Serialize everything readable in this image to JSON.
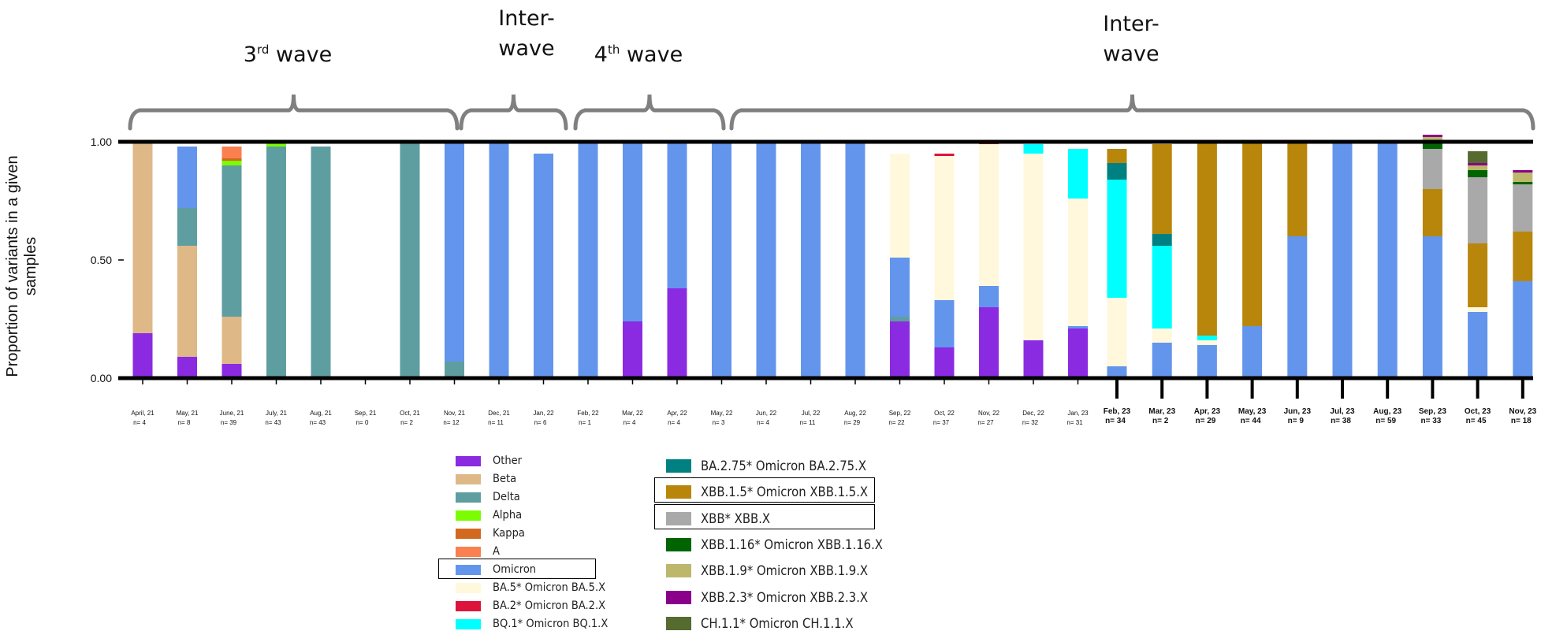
{
  "ylabel": "Proportion of variants in a given samples",
  "waves": [
    {
      "line1": "3",
      "sup": "rd",
      "line2": " wave"
    },
    {
      "line1": "Inter-",
      "line2": "wave"
    },
    {
      "line1": "4",
      "sup": "th",
      "line2": " wave"
    },
    {
      "line1": "Inter-",
      "line2": "wave"
    }
  ],
  "chart_data": {
    "type": "bar",
    "stacked": true,
    "ylabel": "Proportion of variants in a given samples",
    "ylim": [
      0,
      1
    ],
    "yticks": [
      "0.00",
      "0.50",
      "1.00"
    ],
    "categories": [
      "April, 21",
      "May, 21",
      "June, 21",
      "July, 21",
      "Aug, 21",
      "Sep, 21",
      "Oct, 21",
      "Nov, 21",
      "Dec, 21",
      "Jan, 22",
      "Feb, 22",
      "Mar, 22",
      "Apr, 22",
      "May, 22",
      "Jun, 22",
      "Jul, 22",
      "Aug, 22",
      "Sep, 22",
      "Oct, 22",
      "Nov, 22",
      "Dec, 22",
      "Jan, 23",
      "Feb, 23",
      "Mar, 23",
      "Apr, 23",
      "May, 23",
      "Jun, 23",
      "Jul, 23",
      "Aug, 23",
      "Sep, 23",
      "Oct, 23",
      "Nov, 23"
    ],
    "n_labels": [
      "n= 4",
      "n= 8",
      "n= 39",
      "n= 43",
      "n= 43",
      "n= 0",
      "n= 2",
      "n= 12",
      "n= 11",
      "n= 6",
      "n= 1",
      "n= 4",
      "n= 4",
      "n= 3",
      "n= 4",
      "n= 11",
      "n= 29",
      "n= 22",
      "n= 37",
      "n= 27",
      "n= 32",
      "n= 31",
      "n= 34",
      "n= 2",
      "n= 29",
      "n= 44",
      "n= 9",
      "n= 38",
      "n= 59",
      "n= 33",
      "n= 45",
      "n= 18"
    ],
    "series": [
      {
        "name": "Other",
        "color": "#8a2be2",
        "values": [
          0.19,
          0.09,
          0.06,
          0,
          0,
          0,
          0,
          0,
          0,
          0,
          0,
          0.24,
          0.38,
          0,
          0,
          0,
          0,
          0.24,
          0.13,
          0.3,
          0.16,
          0.21,
          0,
          0,
          0,
          0,
          0,
          0,
          0,
          0,
          0,
          0
        ]
      },
      {
        "name": "Beta",
        "color": "#deb887",
        "values": [
          0.81,
          0.47,
          0.2,
          0,
          0,
          0,
          0,
          0,
          0,
          0,
          0,
          0,
          0,
          0,
          0,
          0,
          0,
          0,
          0,
          0,
          0,
          0,
          0,
          0,
          0,
          0,
          0,
          0,
          0,
          0,
          0,
          0
        ]
      },
      {
        "name": "Delta",
        "color": "#5f9ea0",
        "values": [
          0,
          0.16,
          0.64,
          0.98,
          0.98,
          0,
          1,
          0.07,
          0,
          0,
          0,
          0,
          0,
          0,
          0,
          0,
          0,
          0.02,
          0,
          0,
          0,
          0,
          0,
          0,
          0,
          0,
          0,
          0,
          0,
          0,
          0,
          0
        ]
      },
      {
        "name": "Alpha",
        "color": "#7cfc00",
        "values": [
          0,
          0,
          0.02,
          0.02,
          0,
          0,
          0,
          0,
          0,
          0,
          0,
          0,
          0,
          0,
          0,
          0,
          0,
          0,
          0,
          0,
          0,
          0,
          0,
          0,
          0,
          0,
          0,
          0,
          0,
          0,
          0,
          0
        ]
      },
      {
        "name": "Kappa",
        "color": "#d2691e",
        "values": [
          0,
          0,
          0.01,
          0,
          0,
          0,
          0,
          0,
          0,
          0,
          0,
          0,
          0,
          0,
          0,
          0,
          0,
          0,
          0,
          0,
          0,
          0,
          0,
          0,
          0,
          0,
          0,
          0,
          0,
          0,
          0,
          0
        ]
      },
      {
        "name": "A",
        "color": "#fa8050",
        "values": [
          0,
          0,
          0.05,
          0,
          0,
          0,
          0,
          0,
          0,
          0,
          0,
          0,
          0,
          0,
          0,
          0,
          0,
          0,
          0,
          0,
          0,
          0,
          0,
          0,
          0,
          0,
          0,
          0,
          0,
          0,
          0,
          0
        ]
      },
      {
        "name": "Omicron",
        "color": "#6495ed",
        "values": [
          0,
          0.26,
          0,
          0,
          0,
          0,
          0,
          0.93,
          1,
          0.95,
          1,
          0.76,
          0.62,
          1,
          1,
          1,
          1,
          0.25,
          0.2,
          0.09,
          0,
          0.01,
          0.05,
          0.15,
          0.14,
          0.22,
          0.6,
          1,
          1,
          0.6,
          0.28,
          0.41
        ]
      },
      {
        "name": "BA.5* Omicron BA.5.X",
        "color": "#fff8dc",
        "values": [
          0,
          0,
          0,
          0,
          0,
          0,
          0,
          0,
          0,
          0,
          0,
          0,
          0,
          0,
          0,
          0,
          0,
          0.44,
          0.61,
          0.6,
          0.79,
          0.54,
          0.29,
          0.06,
          0.02,
          0,
          0,
          0,
          0,
          0,
          0.02,
          0
        ]
      },
      {
        "name": "BA.2* Omicron BA.2.X",
        "color": "#dc143c",
        "values": [
          0,
          0,
          0,
          0,
          0,
          0,
          0,
          0,
          0,
          0,
          0,
          0,
          0,
          0,
          0,
          0,
          0,
          0,
          0.01,
          0.01,
          0,
          0,
          0,
          0,
          0,
          0,
          0,
          0,
          0,
          0,
          0,
          0
        ]
      },
      {
        "name": "BQ.1* Omicron BQ.1.X",
        "color": "#00ffff",
        "values": [
          0,
          0,
          0,
          0,
          0,
          0,
          0,
          0,
          0,
          0,
          0,
          0,
          0,
          0,
          0,
          0,
          0,
          0,
          0,
          0,
          0.04,
          0.21,
          0.5,
          0.35,
          0.02,
          0,
          0,
          0,
          0,
          0,
          0,
          0
        ]
      },
      {
        "name": "BA.2.75* Omicron BA.2.75.X",
        "color": "#008080",
        "values": [
          0,
          0,
          0,
          0,
          0,
          0,
          0,
          0,
          0,
          0,
          0,
          0,
          0,
          0,
          0,
          0,
          0,
          0,
          0,
          0,
          0,
          0,
          0.07,
          0.05,
          0,
          0,
          0,
          0,
          0,
          0,
          0,
          0
        ]
      },
      {
        "name": "XBB.1.5* Omicron XBB.1.5.X",
        "color": "#b8860b",
        "values": [
          0,
          0,
          0,
          0,
          0,
          0,
          0,
          0,
          0,
          0,
          0,
          0,
          0,
          0,
          0,
          0,
          0,
          0,
          0,
          0,
          0,
          0,
          0.06,
          0.38,
          0.82,
          0.78,
          0.4,
          0,
          0,
          0.2,
          0.27,
          0.21
        ]
      },
      {
        "name": "XBB* XBB.X",
        "color": "#a9a9a9",
        "values": [
          0,
          0,
          0,
          0,
          0,
          0,
          0,
          0,
          0,
          0,
          0,
          0,
          0,
          0,
          0,
          0,
          0,
          0,
          0,
          0,
          0,
          0,
          0,
          0,
          0,
          0,
          0,
          0,
          0,
          0.17,
          0.28,
          0.2
        ]
      },
      {
        "name": "XBB.1.16* Omicron XBB.1.16.X",
        "color": "#006400",
        "values": [
          0,
          0,
          0,
          0,
          0,
          0,
          0,
          0,
          0,
          0,
          0,
          0,
          0,
          0,
          0,
          0,
          0,
          0,
          0,
          0,
          0,
          0,
          0,
          0,
          0,
          0,
          0,
          0,
          0,
          0.03,
          0.03,
          0.01
        ]
      },
      {
        "name": "XBB.1.9* Omicron XBB.1.9.X",
        "color": "#bdb76b",
        "values": [
          0,
          0,
          0,
          0,
          0,
          0,
          0,
          0,
          0,
          0,
          0,
          0,
          0,
          0,
          0,
          0,
          0,
          0,
          0,
          0,
          0,
          0,
          0,
          0,
          0,
          0,
          0,
          0,
          0,
          0.02,
          0.02,
          0.04
        ]
      },
      {
        "name": "XBB.2.3* Omicron XBB.2.3.X",
        "color": "#8b008b",
        "values": [
          0,
          0,
          0,
          0,
          0,
          0,
          0,
          0,
          0,
          0,
          0,
          0,
          0,
          0,
          0,
          0,
          0,
          0,
          0,
          0,
          0,
          0,
          0,
          0,
          0,
          0,
          0,
          0,
          0,
          0.01,
          0.01,
          0.01
        ]
      },
      {
        "name": "CH.1.1* Omicron CH.1.1.X",
        "color": "#556b2f",
        "values": [
          0,
          0,
          0,
          0,
          0,
          0,
          0,
          0,
          0,
          0,
          0,
          0,
          0,
          0,
          0,
          0,
          0,
          0,
          0,
          0,
          0,
          0,
          0,
          0,
          0,
          0,
          0,
          0,
          0,
          0,
          0.05,
          0
        ]
      }
    ],
    "legend": {
      "placement": "bottom",
      "boxed": [
        "Omicron",
        "XBB.1.5* Omicron XBB.1.5.X",
        "XBB* XBB.X"
      ]
    }
  }
}
